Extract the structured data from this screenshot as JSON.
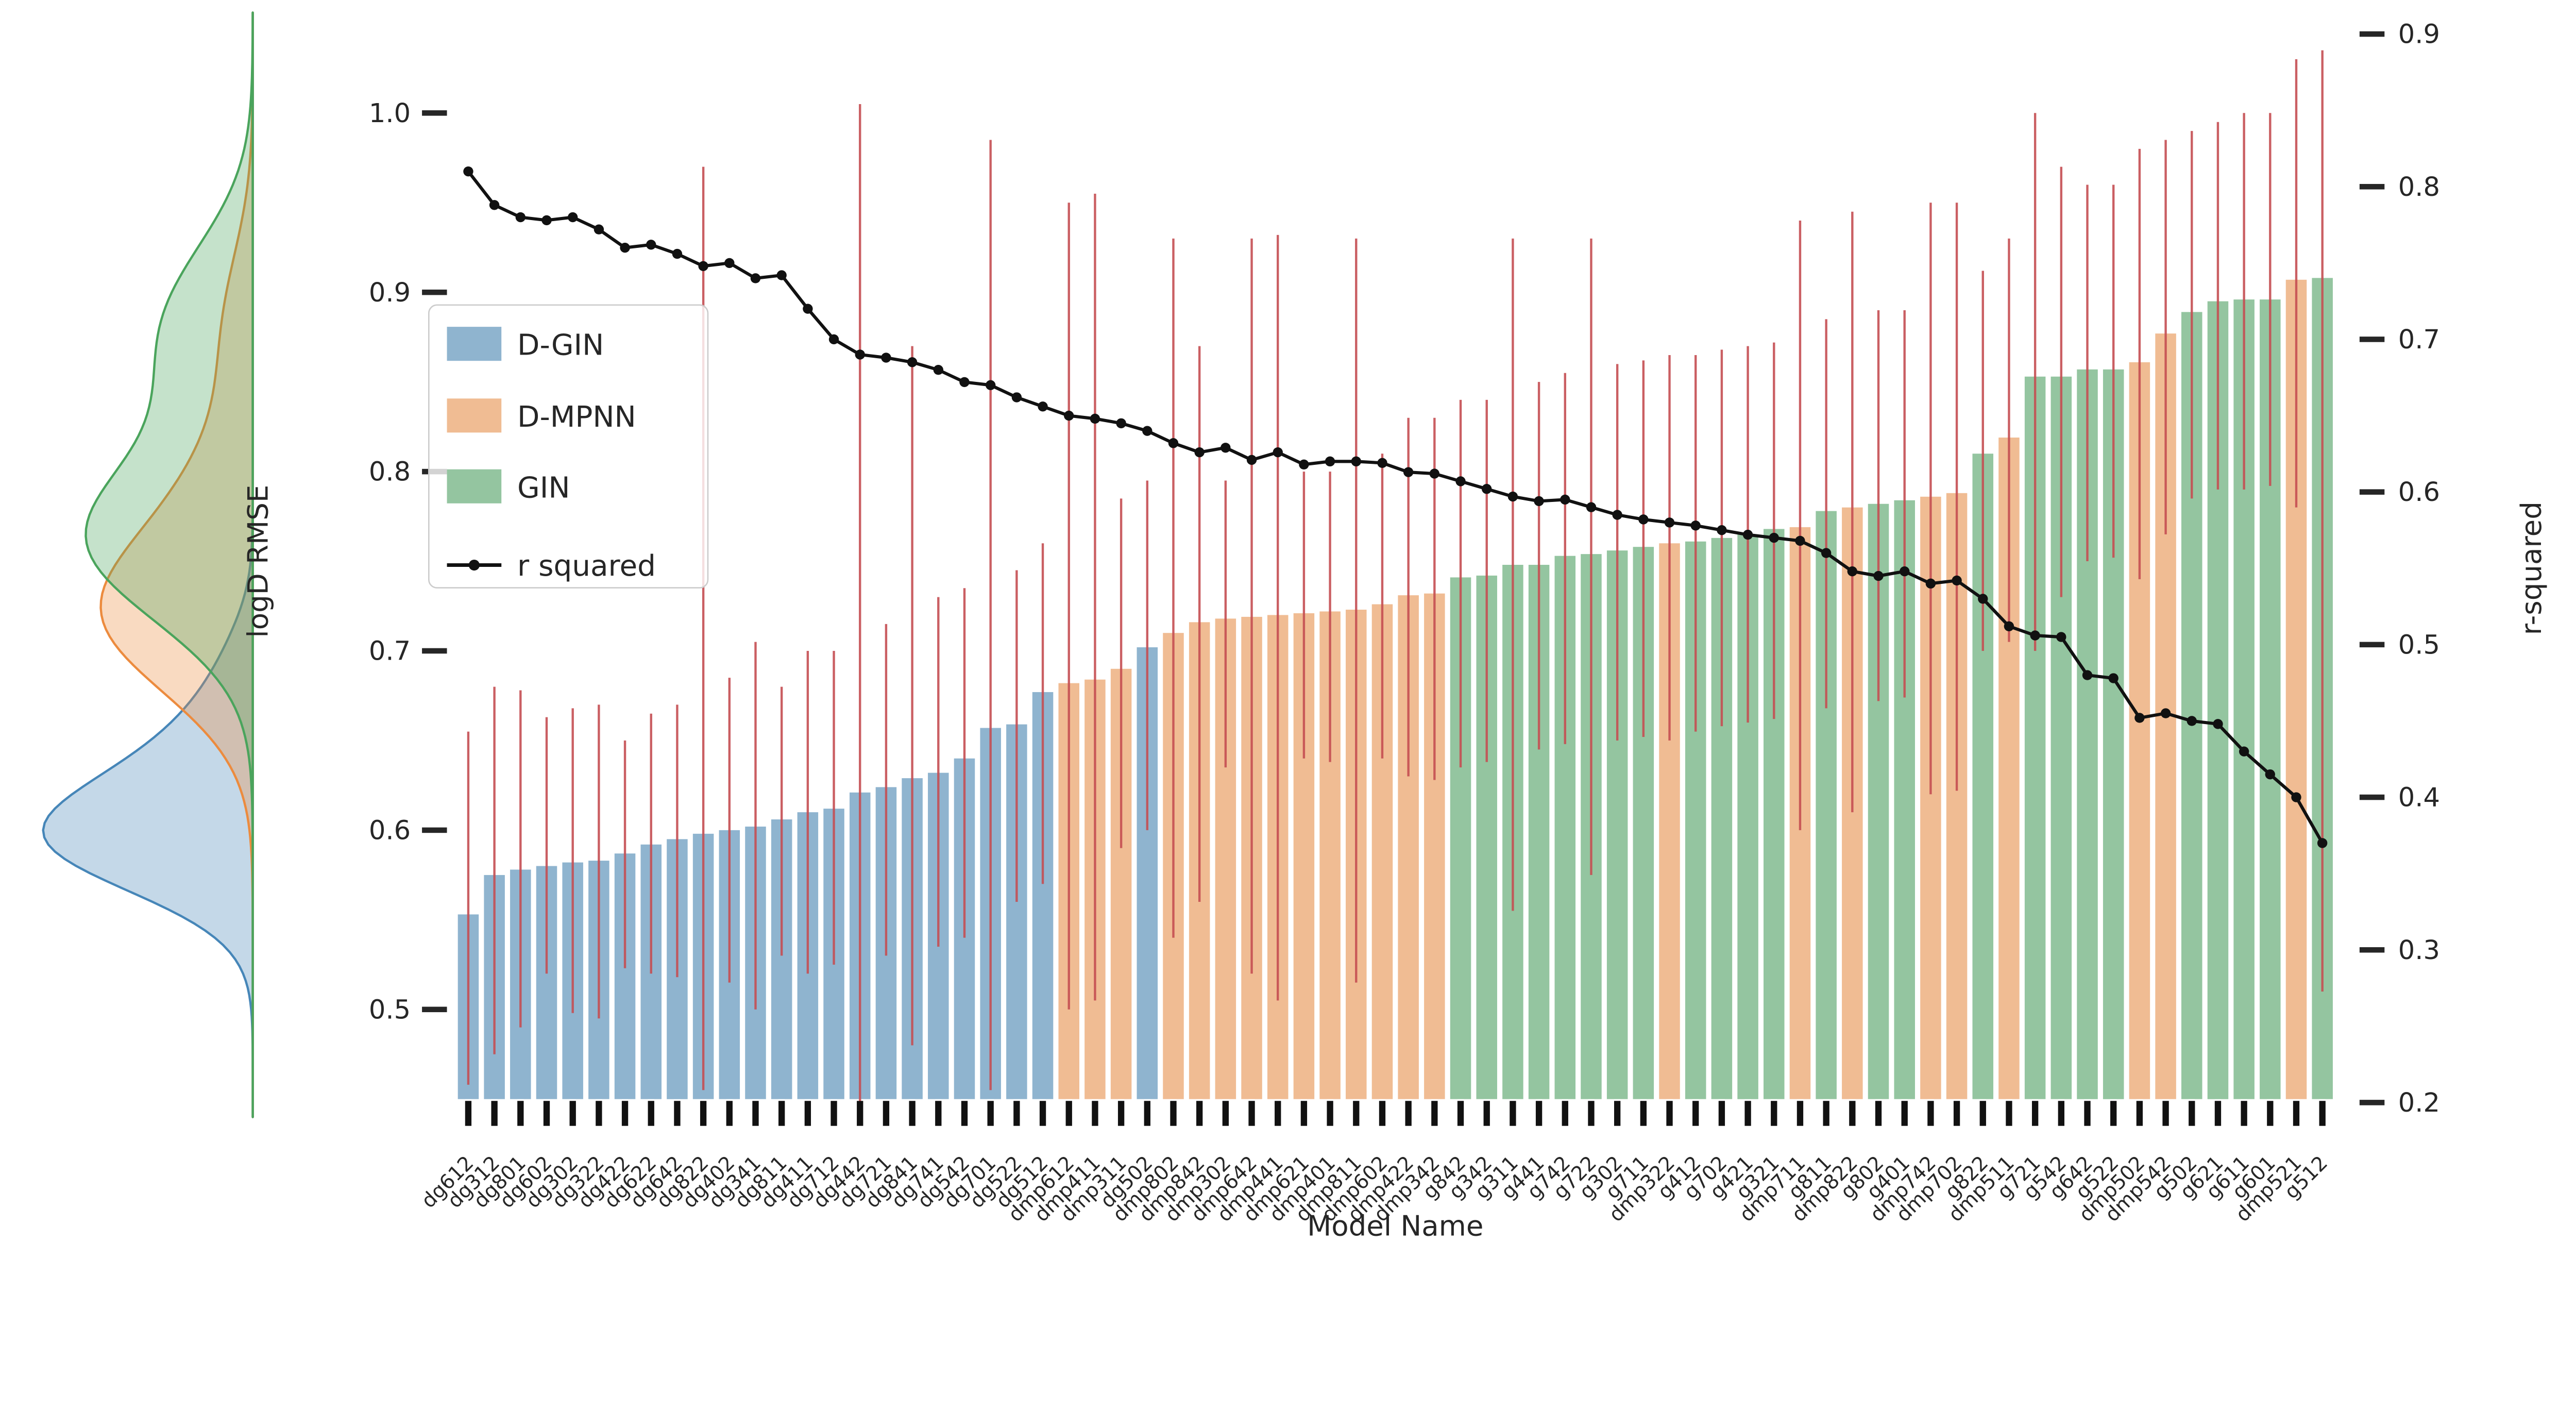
{
  "figure": {
    "xlabel": "Model Name",
    "ylabel_left": "logD RMSE",
    "ylabel_right": "r-squared",
    "legend": {
      "items": [
        {
          "key": "dg",
          "label": "D-GIN",
          "type": "patch"
        },
        {
          "key": "dmp",
          "label": "D-MPNN",
          "type": "patch"
        },
        {
          "key": "g",
          "label": "GIN",
          "type": "patch"
        },
        {
          "key": "line",
          "label": "r squared",
          "type": "line"
        }
      ]
    }
  },
  "chart_data": {
    "type": "bar",
    "title": "",
    "xlabel": "Model Name",
    "ylabel": "logD RMSE",
    "ylabel_right": "r-squared",
    "left_ticks": [
      1.0,
      0.9,
      0.8,
      0.7,
      0.6,
      0.5
    ],
    "left_ylim": [
      0.45,
      1.04
    ],
    "right_ticks": [
      0.9,
      0.8,
      0.7,
      0.6,
      0.5,
      0.4,
      0.3,
      0.2
    ],
    "right_ylim": [
      0.193,
      0.902
    ],
    "grid": false,
    "legend_position": "upper-left-inside",
    "colors": {
      "bar_dg": "#8fb4cf",
      "bar_dmp": "#f0bc93",
      "bar_g": "#94c5a0",
      "kde_dg": "#4686b8",
      "kde_dmp": "#ec8b3e",
      "kde_g": "#4aa45c",
      "error_bar": "#c44e52",
      "r_line": "#111111",
      "legend_border": "#cccccc"
    },
    "marginal_kde": {
      "baseline_x": 557,
      "bandwidth": {
        "dg": 0.024,
        "dmp": 0.038,
        "g": 0.042
      },
      "max_width": {
        "dg": 462,
        "dmp": 335,
        "g": 368
      }
    },
    "series": [
      {
        "name": "logD RMSE bars with error bars",
        "axis": "left"
      },
      {
        "name": "r squared",
        "axis": "right"
      }
    ],
    "models": [
      {
        "name": "dg612",
        "family": "dg",
        "rmse": 0.553,
        "err_lo": 0.458,
        "err_hi": 0.655,
        "r2": 0.81
      },
      {
        "name": "dg312",
        "family": "dg",
        "rmse": 0.575,
        "err_lo": 0.475,
        "err_hi": 0.68,
        "r2": 0.788
      },
      {
        "name": "dg801",
        "family": "dg",
        "rmse": 0.578,
        "err_lo": 0.49,
        "err_hi": 0.678,
        "r2": 0.78
      },
      {
        "name": "dg602",
        "family": "dg",
        "rmse": 0.58,
        "err_lo": 0.52,
        "err_hi": 0.663,
        "r2": 0.778
      },
      {
        "name": "dg302",
        "family": "dg",
        "rmse": 0.582,
        "err_lo": 0.498,
        "err_hi": 0.668,
        "r2": 0.78
      },
      {
        "name": "dg322",
        "family": "dg",
        "rmse": 0.583,
        "err_lo": 0.495,
        "err_hi": 0.67,
        "r2": 0.772
      },
      {
        "name": "dg422",
        "family": "dg",
        "rmse": 0.587,
        "err_lo": 0.523,
        "err_hi": 0.65,
        "r2": 0.76
      },
      {
        "name": "dg622",
        "family": "dg",
        "rmse": 0.592,
        "err_lo": 0.52,
        "err_hi": 0.665,
        "r2": 0.762
      },
      {
        "name": "dg642",
        "family": "dg",
        "rmse": 0.595,
        "err_lo": 0.518,
        "err_hi": 0.67,
        "r2": 0.756
      },
      {
        "name": "dg822",
        "family": "dg",
        "rmse": 0.598,
        "err_lo": 0.455,
        "err_hi": 0.97,
        "r2": 0.748
      },
      {
        "name": "dg402",
        "family": "dg",
        "rmse": 0.6,
        "err_lo": 0.515,
        "err_hi": 0.685,
        "r2": 0.75
      },
      {
        "name": "dg341",
        "family": "dg",
        "rmse": 0.602,
        "err_lo": 0.5,
        "err_hi": 0.705,
        "r2": 0.74
      },
      {
        "name": "dg811",
        "family": "dg",
        "rmse": 0.606,
        "err_lo": 0.53,
        "err_hi": 0.68,
        "r2": 0.742
      },
      {
        "name": "dg411",
        "family": "dg",
        "rmse": 0.61,
        "err_lo": 0.52,
        "err_hi": 0.7,
        "r2": 0.72
      },
      {
        "name": "dg712",
        "family": "dg",
        "rmse": 0.612,
        "err_lo": 0.525,
        "err_hi": 0.7,
        "r2": 0.7
      },
      {
        "name": "dg442",
        "family": "dg",
        "rmse": 0.621,
        "err_lo": 0.448,
        "err_hi": 1.005,
        "r2": 0.69
      },
      {
        "name": "dg721",
        "family": "dg",
        "rmse": 0.624,
        "err_lo": 0.53,
        "err_hi": 0.715,
        "r2": 0.688
      },
      {
        "name": "dg841",
        "family": "dg",
        "rmse": 0.629,
        "err_lo": 0.48,
        "err_hi": 0.87,
        "r2": 0.685
      },
      {
        "name": "dg741",
        "family": "dg",
        "rmse": 0.632,
        "err_lo": 0.535,
        "err_hi": 0.73,
        "r2": 0.68
      },
      {
        "name": "dg542",
        "family": "dg",
        "rmse": 0.64,
        "err_lo": 0.54,
        "err_hi": 0.735,
        "r2": 0.672
      },
      {
        "name": "dg701",
        "family": "dg",
        "rmse": 0.657,
        "err_lo": 0.455,
        "err_hi": 0.985,
        "r2": 0.67
      },
      {
        "name": "dg522",
        "family": "dg",
        "rmse": 0.659,
        "err_lo": 0.56,
        "err_hi": 0.745,
        "r2": 0.662
      },
      {
        "name": "dg512",
        "family": "dg",
        "rmse": 0.677,
        "err_lo": 0.57,
        "err_hi": 0.76,
        "r2": 0.656
      },
      {
        "name": "dmp612",
        "family": "dmp",
        "rmse": 0.682,
        "err_lo": 0.5,
        "err_hi": 0.95,
        "r2": 0.65
      },
      {
        "name": "dmp411",
        "family": "dmp",
        "rmse": 0.684,
        "err_lo": 0.505,
        "err_hi": 0.955,
        "r2": 0.648
      },
      {
        "name": "dmp311",
        "family": "dmp",
        "rmse": 0.69,
        "err_lo": 0.59,
        "err_hi": 0.785,
        "r2": 0.645
      },
      {
        "name": "dg502",
        "family": "dg",
        "rmse": 0.702,
        "err_lo": 0.6,
        "err_hi": 0.795,
        "r2": 0.64
      },
      {
        "name": "dmp802",
        "family": "dmp",
        "rmse": 0.71,
        "err_lo": 0.54,
        "err_hi": 0.93,
        "r2": 0.632
      },
      {
        "name": "dmp842",
        "family": "dmp",
        "rmse": 0.716,
        "err_lo": 0.56,
        "err_hi": 0.87,
        "r2": 0.626
      },
      {
        "name": "dmp302",
        "family": "dmp",
        "rmse": 0.718,
        "err_lo": 0.635,
        "err_hi": 0.795,
        "r2": 0.629
      },
      {
        "name": "dmp642",
        "family": "dmp",
        "rmse": 0.719,
        "err_lo": 0.52,
        "err_hi": 0.93,
        "r2": 0.621
      },
      {
        "name": "dmp441",
        "family": "dmp",
        "rmse": 0.72,
        "err_lo": 0.505,
        "err_hi": 0.932,
        "r2": 0.626
      },
      {
        "name": "dmp621",
        "family": "dmp",
        "rmse": 0.721,
        "err_lo": 0.64,
        "err_hi": 0.8,
        "r2": 0.618
      },
      {
        "name": "dmp401",
        "family": "dmp",
        "rmse": 0.722,
        "err_lo": 0.638,
        "err_hi": 0.8,
        "r2": 0.62
      },
      {
        "name": "dmp811",
        "family": "dmp",
        "rmse": 0.723,
        "err_lo": 0.515,
        "err_hi": 0.93,
        "r2": 0.62
      },
      {
        "name": "dmp602",
        "family": "dmp",
        "rmse": 0.726,
        "err_lo": 0.64,
        "err_hi": 0.81,
        "r2": 0.619
      },
      {
        "name": "dmp422",
        "family": "dmp",
        "rmse": 0.731,
        "err_lo": 0.63,
        "err_hi": 0.83,
        "r2": 0.613
      },
      {
        "name": "dmp342",
        "family": "dmp",
        "rmse": 0.732,
        "err_lo": 0.628,
        "err_hi": 0.83,
        "r2": 0.612
      },
      {
        "name": "g842",
        "family": "g",
        "rmse": 0.741,
        "err_lo": 0.635,
        "err_hi": 0.84,
        "r2": 0.607
      },
      {
        "name": "g342",
        "family": "g",
        "rmse": 0.742,
        "err_lo": 0.638,
        "err_hi": 0.84,
        "r2": 0.602
      },
      {
        "name": "g311",
        "family": "g",
        "rmse": 0.748,
        "err_lo": 0.555,
        "err_hi": 0.93,
        "r2": 0.597
      },
      {
        "name": "g441",
        "family": "g",
        "rmse": 0.748,
        "err_lo": 0.645,
        "err_hi": 0.85,
        "r2": 0.594
      },
      {
        "name": "g742",
        "family": "g",
        "rmse": 0.753,
        "err_lo": 0.648,
        "err_hi": 0.855,
        "r2": 0.595
      },
      {
        "name": "g722",
        "family": "g",
        "rmse": 0.754,
        "err_lo": 0.575,
        "err_hi": 0.93,
        "r2": 0.59
      },
      {
        "name": "g302",
        "family": "g",
        "rmse": 0.756,
        "err_lo": 0.65,
        "err_hi": 0.86,
        "r2": 0.585
      },
      {
        "name": "g711",
        "family": "g",
        "rmse": 0.758,
        "err_lo": 0.652,
        "err_hi": 0.862,
        "r2": 0.582
      },
      {
        "name": "dmp322",
        "family": "dmp",
        "rmse": 0.76,
        "err_lo": 0.65,
        "err_hi": 0.865,
        "r2": 0.58
      },
      {
        "name": "g412",
        "family": "g",
        "rmse": 0.761,
        "err_lo": 0.655,
        "err_hi": 0.865,
        "r2": 0.578
      },
      {
        "name": "g702",
        "family": "g",
        "rmse": 0.763,
        "err_lo": 0.658,
        "err_hi": 0.868,
        "r2": 0.575
      },
      {
        "name": "g421",
        "family": "g",
        "rmse": 0.765,
        "err_lo": 0.66,
        "err_hi": 0.87,
        "r2": 0.572
      },
      {
        "name": "g321",
        "family": "g",
        "rmse": 0.768,
        "err_lo": 0.662,
        "err_hi": 0.872,
        "r2": 0.57
      },
      {
        "name": "dmp711",
        "family": "dmp",
        "rmse": 0.769,
        "err_lo": 0.6,
        "err_hi": 0.94,
        "r2": 0.568
      },
      {
        "name": "g811",
        "family": "g",
        "rmse": 0.778,
        "err_lo": 0.668,
        "err_hi": 0.885,
        "r2": 0.56
      },
      {
        "name": "dmp822",
        "family": "dmp",
        "rmse": 0.78,
        "err_lo": 0.61,
        "err_hi": 0.945,
        "r2": 0.548
      },
      {
        "name": "g802",
        "family": "g",
        "rmse": 0.782,
        "err_lo": 0.672,
        "err_hi": 0.89,
        "r2": 0.545
      },
      {
        "name": "g401",
        "family": "g",
        "rmse": 0.784,
        "err_lo": 0.674,
        "err_hi": 0.89,
        "r2": 0.548
      },
      {
        "name": "dmp742",
        "family": "dmp",
        "rmse": 0.786,
        "err_lo": 0.62,
        "err_hi": 0.95,
        "r2": 0.54
      },
      {
        "name": "dmp702",
        "family": "dmp",
        "rmse": 0.788,
        "err_lo": 0.622,
        "err_hi": 0.95,
        "r2": 0.542
      },
      {
        "name": "g822",
        "family": "g",
        "rmse": 0.81,
        "err_lo": 0.7,
        "err_hi": 0.912,
        "r2": 0.53
      },
      {
        "name": "dmp511",
        "family": "dmp",
        "rmse": 0.819,
        "err_lo": 0.705,
        "err_hi": 0.93,
        "r2": 0.512
      },
      {
        "name": "g721",
        "family": "g",
        "rmse": 0.853,
        "err_lo": 0.7,
        "err_hi": 1.0,
        "r2": 0.506
      },
      {
        "name": "g542",
        "family": "g",
        "rmse": 0.853,
        "err_lo": 0.73,
        "err_hi": 0.97,
        "r2": 0.505
      },
      {
        "name": "g642",
        "family": "g",
        "rmse": 0.857,
        "err_lo": 0.75,
        "err_hi": 0.96,
        "r2": 0.48
      },
      {
        "name": "g522",
        "family": "g",
        "rmse": 0.857,
        "err_lo": 0.752,
        "err_hi": 0.96,
        "r2": 0.478
      },
      {
        "name": "dmp502",
        "family": "dmp",
        "rmse": 0.861,
        "err_lo": 0.74,
        "err_hi": 0.98,
        "r2": 0.452
      },
      {
        "name": "dmp542",
        "family": "dmp",
        "rmse": 0.877,
        "err_lo": 0.765,
        "err_hi": 0.985,
        "r2": 0.455
      },
      {
        "name": "g502",
        "family": "g",
        "rmse": 0.889,
        "err_lo": 0.785,
        "err_hi": 0.99,
        "r2": 0.45
      },
      {
        "name": "g621",
        "family": "g",
        "rmse": 0.895,
        "err_lo": 0.79,
        "err_hi": 0.995,
        "r2": 0.448
      },
      {
        "name": "g611",
        "family": "g",
        "rmse": 0.896,
        "err_lo": 0.79,
        "err_hi": 1.0,
        "r2": 0.43
      },
      {
        "name": "g601",
        "family": "g",
        "rmse": 0.896,
        "err_lo": 0.792,
        "err_hi": 1.0,
        "r2": 0.415
      },
      {
        "name": "dmp521",
        "family": "dmp",
        "rmse": 0.907,
        "err_lo": 0.78,
        "err_hi": 1.03,
        "r2": 0.4
      },
      {
        "name": "g512",
        "family": "g",
        "rmse": 0.908,
        "err_lo": 0.51,
        "err_hi": 1.035,
        "r2": 0.37
      }
    ]
  }
}
